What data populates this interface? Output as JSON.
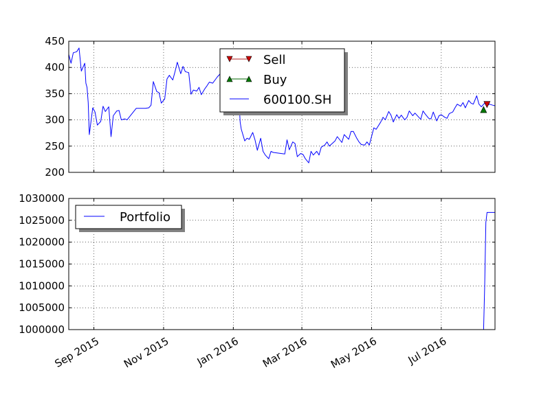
{
  "chart_data": [
    {
      "type": "line",
      "ylim": [
        200,
        450
      ],
      "yticks": [
        200,
        250,
        300,
        350,
        400,
        450
      ],
      "ytick_labels": [
        "200",
        "250",
        "300",
        "350",
        "400",
        "450"
      ],
      "grid": true,
      "legend_position": "top-center",
      "x_range": [
        "2015-08-10",
        "2016-08-17"
      ],
      "series": [
        {
          "name": "600100.SH",
          "marker": "line",
          "color": "#0000ff",
          "x": [
            "2015-08-10",
            "2015-08-12",
            "2015-08-14",
            "2015-08-17",
            "2015-08-19",
            "2015-08-21",
            "2015-08-24",
            "2015-08-25",
            "2015-08-26",
            "2015-08-27",
            "2015-08-28",
            "2015-08-31",
            "2015-09-02",
            "2015-09-04",
            "2015-09-07",
            "2015-09-09",
            "2015-09-11",
            "2015-09-14",
            "2015-09-16",
            "2015-09-18",
            "2015-09-21",
            "2015-09-23",
            "2015-09-25",
            "2015-09-28",
            "2015-09-30",
            "2015-10-08",
            "2015-10-12",
            "2015-10-14",
            "2015-10-16",
            "2015-10-19",
            "2015-10-21",
            "2015-10-23",
            "2015-10-26",
            "2015-10-28",
            "2015-10-30",
            "2015-11-02",
            "2015-11-04",
            "2015-11-06",
            "2015-11-09",
            "2015-11-11",
            "2015-11-13",
            "2015-11-16",
            "2015-11-18",
            "2015-11-20",
            "2015-11-23",
            "2015-11-25",
            "2015-11-27",
            "2015-11-30",
            "2015-12-02",
            "2015-12-04",
            "2015-12-07",
            "2015-12-09",
            "2015-12-11",
            "2015-12-14",
            "2015-12-16",
            "2015-12-18",
            "2015-12-21",
            "2015-12-23",
            "2015-12-25",
            "2015-12-28",
            "2015-12-30",
            "2016-01-04",
            "2016-01-05",
            "2016-01-06",
            "2016-01-07",
            "2016-01-08",
            "2016-01-11",
            "2016-01-13",
            "2016-01-15",
            "2016-01-18",
            "2016-01-20",
            "2016-01-22",
            "2016-01-25",
            "2016-01-27",
            "2016-01-29",
            "2016-02-01",
            "2016-02-03",
            "2016-02-05",
            "2016-02-15",
            "2016-02-17",
            "2016-02-19",
            "2016-02-22",
            "2016-02-24",
            "2016-02-26",
            "2016-02-29",
            "2016-03-02",
            "2016-03-04",
            "2016-03-07",
            "2016-03-09",
            "2016-03-11",
            "2016-03-14",
            "2016-03-16",
            "2016-03-18",
            "2016-03-21",
            "2016-03-23",
            "2016-03-25",
            "2016-03-28",
            "2016-03-30",
            "2016-04-01",
            "2016-04-05",
            "2016-04-07",
            "2016-04-11",
            "2016-04-13",
            "2016-04-15",
            "2016-04-18",
            "2016-04-20",
            "2016-04-22",
            "2016-04-25",
            "2016-04-27",
            "2016-04-29",
            "2016-05-03",
            "2016-05-05",
            "2016-05-09",
            "2016-05-11",
            "2016-05-13",
            "2016-05-16",
            "2016-05-18",
            "2016-05-20",
            "2016-05-23",
            "2016-05-25",
            "2016-05-27",
            "2016-05-30",
            "2016-06-01",
            "2016-06-03",
            "2016-06-06",
            "2016-06-08",
            "2016-06-13",
            "2016-06-15",
            "2016-06-17",
            "2016-06-20",
            "2016-06-22",
            "2016-06-24",
            "2016-06-27",
            "2016-06-29",
            "2016-07-01",
            "2016-07-04",
            "2016-07-06",
            "2016-07-08",
            "2016-07-11",
            "2016-07-13",
            "2016-07-15",
            "2016-07-18",
            "2016-07-20",
            "2016-07-22",
            "2016-07-25",
            "2016-07-27",
            "2016-07-29",
            "2016-08-01",
            "2016-08-03",
            "2016-08-05",
            "2016-08-08",
            "2016-08-10",
            "2016-08-12",
            "2016-08-15",
            "2016-08-17"
          ],
          "y": [
            425,
            408,
            428,
            430,
            437,
            393,
            408,
            370,
            362,
            333,
            272,
            323,
            315,
            290,
            297,
            326,
            316,
            325,
            268,
            308,
            317,
            318,
            300,
            302,
            300,
            322,
            322,
            322,
            322,
            323,
            328,
            373,
            354,
            352,
            332,
            340,
            378,
            385,
            376,
            392,
            410,
            388,
            402,
            392,
            390,
            349,
            357,
            355,
            362,
            348,
            359,
            365,
            372,
            370,
            376,
            382,
            389,
            390,
            393,
            378,
            365,
            355,
            345,
            337,
            296,
            282,
            260,
            265,
            263,
            276,
            262,
            242,
            265,
            240,
            233,
            226,
            240,
            238,
            235,
            262,
            243,
            258,
            255,
            230,
            236,
            234,
            226,
            218,
            240,
            233,
            240,
            233,
            248,
            252,
            258,
            250,
            256,
            260,
            268,
            257,
            272,
            263,
            278,
            278,
            265,
            258,
            253,
            252,
            258,
            252,
            285,
            282,
            296,
            305,
            300,
            316,
            309,
            296,
            310,
            303,
            309,
            300,
            305,
            317,
            308,
            313,
            301,
            317,
            311,
            303,
            302,
            315,
            298,
            308,
            310,
            305,
            303,
            312,
            315,
            323,
            330,
            326,
            333,
            323,
            337,
            332,
            330,
            346,
            330,
            325,
            332,
            327,
            330,
            328,
            327
          ]
        },
        {
          "name": "Buy",
          "marker": "triangle-up",
          "color": "#006400",
          "x": [
            "2016-08-07"
          ],
          "y": [
            319
          ]
        },
        {
          "name": "Sell",
          "marker": "triangle-down",
          "color": "#b22222",
          "x": [
            "2016-08-10"
          ],
          "y": [
            330
          ]
        }
      ]
    },
    {
      "type": "line",
      "ylim": [
        1000000,
        1030000
      ],
      "yticks": [
        1000000,
        1005000,
        1010000,
        1015000,
        1020000,
        1025000,
        1030000
      ],
      "ytick_labels": [
        "1000000",
        "1005000",
        "1010000",
        "1015000",
        "1020000",
        "1025000",
        "1030000"
      ],
      "grid": true,
      "legend_position": "top-left",
      "xticks": [
        "2015-09-01",
        "2015-11-01",
        "2016-01-01",
        "2016-03-01",
        "2016-05-01",
        "2016-07-01"
      ],
      "xtick_labels": [
        "Sep 2015",
        "Nov 2015",
        "Jan 2016",
        "Mar 2016",
        "May 2016",
        "Jul 2016"
      ],
      "x_range": [
        "2015-08-10",
        "2016-08-17"
      ],
      "series": [
        {
          "name": "Portfolio",
          "marker": "line",
          "color": "#0000ff",
          "x": [
            "2015-08-10",
            "2016-08-07",
            "2016-08-08",
            "2016-08-09",
            "2016-08-10",
            "2016-08-17"
          ],
          "y": [
            1000000,
            1000000,
            1010000,
            1024500,
            1026800,
            1026800
          ]
        }
      ]
    }
  ]
}
